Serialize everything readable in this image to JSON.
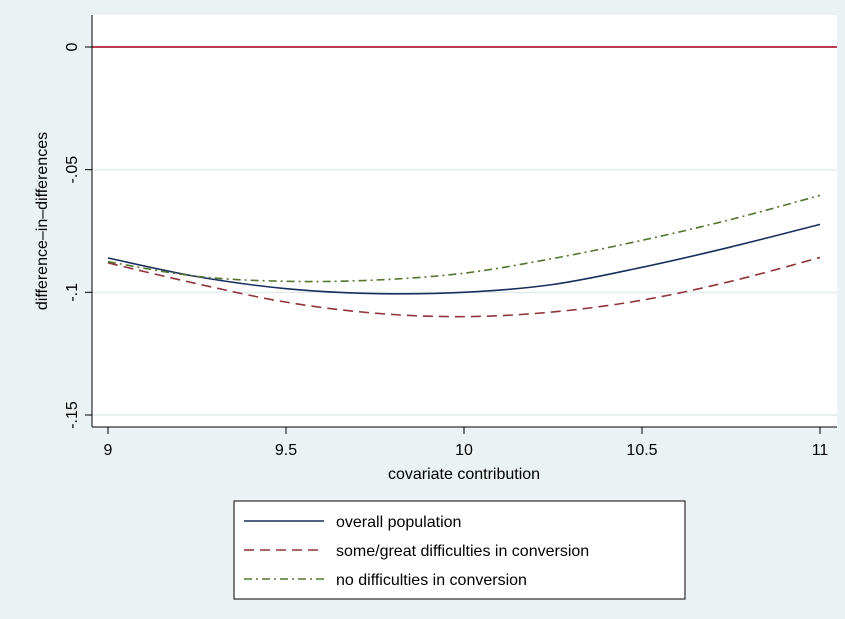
{
  "chart_data": {
    "type": "line",
    "title": "",
    "xlabel": "covariate contribution",
    "ylabel": "difference–in–differences",
    "xlim": [
      9,
      11
    ],
    "ylim": [
      -0.155,
      0.002
    ],
    "x_ticks": [
      9,
      9.5,
      10,
      10.5,
      11
    ],
    "x_tick_labels": [
      "9",
      "9.5",
      "10",
      "10.5",
      "11"
    ],
    "y_ticks": [
      0,
      -0.05,
      -0.1,
      -0.15
    ],
    "y_tick_labels": [
      "0",
      "-.05",
      "-.1",
      "-.15"
    ],
    "grid": true,
    "legend_position": "bottom",
    "reference_line": {
      "y": 0,
      "color": "#b2203e"
    },
    "series": [
      {
        "name": "overall population",
        "color": "#1a2e5c",
        "dash": "solid",
        "x": [
          9,
          9.25,
          9.5,
          9.75,
          10,
          10.25,
          10.5,
          10.75,
          11
        ],
        "y": [
          -0.086,
          -0.0936,
          -0.0985,
          -0.1005,
          -0.1,
          -0.0968,
          -0.0898,
          -0.0815,
          -0.0723
        ]
      },
      {
        "name": "some/great difficulties in conversion",
        "color": "#90353b",
        "dash": "dashed",
        "x": [
          9,
          9.25,
          9.5,
          9.75,
          10,
          10.25,
          10.5,
          10.75,
          11
        ],
        "y": [
          -0.088,
          -0.0965,
          -0.104,
          -0.1085,
          -0.1099,
          -0.108,
          -0.1032,
          -0.0955,
          -0.0858
        ]
      },
      {
        "name": "no difficulties in conversion",
        "color": "#55752f",
        "dash": "dashdot",
        "x": [
          9,
          9.25,
          9.5,
          9.75,
          10,
          10.25,
          10.5,
          10.75,
          11
        ],
        "y": [
          -0.0875,
          -0.0935,
          -0.0955,
          -0.095,
          -0.0922,
          -0.0862,
          -0.0788,
          -0.0703,
          -0.0605
        ]
      }
    ]
  }
}
